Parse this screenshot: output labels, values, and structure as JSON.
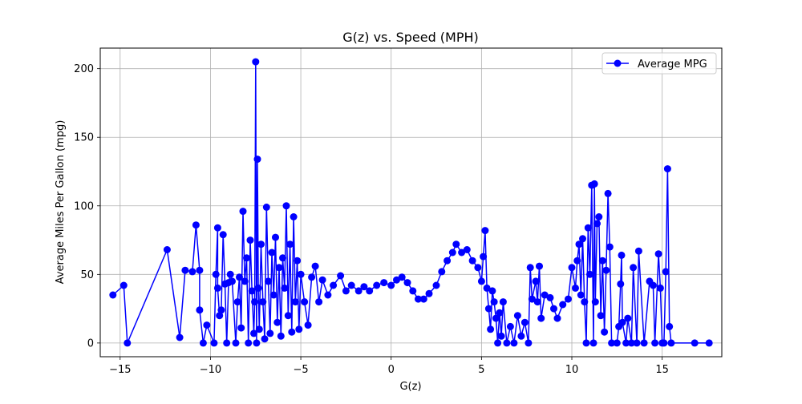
{
  "chart_data": {
    "type": "line",
    "title": "G(z) vs. Speed (MPH)",
    "xlabel": "G(z)",
    "ylabel": "Average Miles Per Gallon (mpg)",
    "xlim": [
      -16.1,
      18.3
    ],
    "ylim": [
      -10,
      215
    ],
    "xticks": [
      -15,
      -10,
      -5,
      0,
      5,
      10,
      15
    ],
    "xtick_labels": [
      "−15",
      "−10",
      "−5",
      "0",
      "5",
      "10",
      "15"
    ],
    "yticks": [
      0,
      50,
      100,
      150,
      200
    ],
    "ytick_labels": [
      "0",
      "50",
      "100",
      "150",
      "200"
    ],
    "grid": true,
    "legend": {
      "placement": "top-right",
      "entries": [
        "Average MPG"
      ]
    },
    "series": [
      {
        "name": "Average MPG",
        "color": "#0000ff",
        "marker": "circle",
        "points": [
          [
            -15.4,
            35
          ],
          [
            -14.8,
            42
          ],
          [
            -14.6,
            0
          ],
          [
            -12.4,
            68
          ],
          [
            -11.7,
            4
          ],
          [
            -11.4,
            53
          ],
          [
            -11.0,
            52
          ],
          [
            -10.8,
            86
          ],
          [
            -10.6,
            53
          ],
          [
            -10.6,
            24
          ],
          [
            -10.4,
            0
          ],
          [
            -10.2,
            13
          ],
          [
            -9.8,
            0
          ],
          [
            -9.7,
            50
          ],
          [
            -9.6,
            84
          ],
          [
            -9.6,
            40
          ],
          [
            -9.5,
            20
          ],
          [
            -9.4,
            24
          ],
          [
            -9.3,
            79
          ],
          [
            -9.2,
            43
          ],
          [
            -9.1,
            0
          ],
          [
            -9.0,
            44
          ],
          [
            -8.9,
            50
          ],
          [
            -8.8,
            45
          ],
          [
            -8.6,
            0
          ],
          [
            -8.5,
            30
          ],
          [
            -8.4,
            48
          ],
          [
            -8.3,
            11
          ],
          [
            -8.2,
            96
          ],
          [
            -8.1,
            45
          ],
          [
            -8.0,
            62
          ],
          [
            -7.9,
            0
          ],
          [
            -7.8,
            75
          ],
          [
            -7.7,
            38
          ],
          [
            -7.6,
            7
          ],
          [
            -7.55,
            30
          ],
          [
            -7.5,
            205
          ],
          [
            -7.45,
            0
          ],
          [
            -7.4,
            134
          ],
          [
            -7.35,
            40
          ],
          [
            -7.3,
            10
          ],
          [
            -7.2,
            72
          ],
          [
            -7.1,
            30
          ],
          [
            -7.0,
            3
          ],
          [
            -6.9,
            99
          ],
          [
            -6.8,
            45
          ],
          [
            -6.7,
            7
          ],
          [
            -6.6,
            66
          ],
          [
            -6.5,
            35
          ],
          [
            -6.4,
            77
          ],
          [
            -6.3,
            15
          ],
          [
            -6.2,
            55
          ],
          [
            -6.1,
            5
          ],
          [
            -6.0,
            62
          ],
          [
            -5.9,
            40
          ],
          [
            -5.8,
            100
          ],
          [
            -5.7,
            20
          ],
          [
            -5.6,
            72
          ],
          [
            -5.5,
            8
          ],
          [
            -5.4,
            92
          ],
          [
            -5.3,
            30
          ],
          [
            -5.2,
            60
          ],
          [
            -5.1,
            10
          ],
          [
            -5.0,
            50
          ],
          [
            -4.8,
            30
          ],
          [
            -4.6,
            13
          ],
          [
            -4.4,
            48
          ],
          [
            -4.2,
            56
          ],
          [
            -4.0,
            30
          ],
          [
            -3.8,
            46
          ],
          [
            -3.5,
            35
          ],
          [
            -3.2,
            42
          ],
          [
            -2.8,
            49
          ],
          [
            -2.5,
            38
          ],
          [
            -2.2,
            42
          ],
          [
            -1.8,
            38
          ],
          [
            -1.5,
            41
          ],
          [
            -1.2,
            38
          ],
          [
            -0.8,
            42
          ],
          [
            -0.4,
            44
          ],
          [
            0.0,
            42
          ],
          [
            0.3,
            46
          ],
          [
            0.6,
            48
          ],
          [
            0.9,
            44
          ],
          [
            1.2,
            38
          ],
          [
            1.5,
            32
          ],
          [
            1.8,
            32
          ],
          [
            2.1,
            36
          ],
          [
            2.5,
            42
          ],
          [
            2.8,
            52
          ],
          [
            3.1,
            60
          ],
          [
            3.4,
            66
          ],
          [
            3.6,
            72
          ],
          [
            3.9,
            66
          ],
          [
            4.2,
            68
          ],
          [
            4.5,
            60
          ],
          [
            4.8,
            55
          ],
          [
            5.0,
            45
          ],
          [
            5.1,
            63
          ],
          [
            5.2,
            82
          ],
          [
            5.3,
            40
          ],
          [
            5.4,
            25
          ],
          [
            5.5,
            10
          ],
          [
            5.6,
            38
          ],
          [
            5.7,
            30
          ],
          [
            5.8,
            18
          ],
          [
            5.9,
            0
          ],
          [
            6.0,
            22
          ],
          [
            6.1,
            5
          ],
          [
            6.2,
            30
          ],
          [
            6.4,
            0
          ],
          [
            6.6,
            12
          ],
          [
            6.8,
            0
          ],
          [
            7.0,
            20
          ],
          [
            7.2,
            5
          ],
          [
            7.4,
            15
          ],
          [
            7.6,
            0
          ],
          [
            7.7,
            55
          ],
          [
            7.8,
            32
          ],
          [
            8.0,
            45
          ],
          [
            8.1,
            30
          ],
          [
            8.2,
            56
          ],
          [
            8.3,
            18
          ],
          [
            8.5,
            35
          ],
          [
            8.8,
            33
          ],
          [
            9.0,
            25
          ],
          [
            9.2,
            18
          ],
          [
            9.5,
            28
          ],
          [
            9.8,
            32
          ],
          [
            10.0,
            55
          ],
          [
            10.2,
            40
          ],
          [
            10.3,
            60
          ],
          [
            10.4,
            72
          ],
          [
            10.5,
            35
          ],
          [
            10.6,
            76
          ],
          [
            10.7,
            30
          ],
          [
            10.8,
            0
          ],
          [
            10.9,
            84
          ],
          [
            11.0,
            50
          ],
          [
            11.1,
            115
          ],
          [
            11.2,
            0
          ],
          [
            11.25,
            116
          ],
          [
            11.3,
            30
          ],
          [
            11.4,
            87
          ],
          [
            11.5,
            92
          ],
          [
            11.6,
            20
          ],
          [
            11.7,
            60
          ],
          [
            11.8,
            8
          ],
          [
            11.9,
            53
          ],
          [
            12.0,
            109
          ],
          [
            12.1,
            70
          ],
          [
            12.2,
            0
          ],
          [
            12.5,
            0
          ],
          [
            12.6,
            12
          ],
          [
            12.7,
            43
          ],
          [
            12.75,
            64
          ],
          [
            12.8,
            15
          ],
          [
            13.0,
            0
          ],
          [
            13.1,
            18
          ],
          [
            13.3,
            0
          ],
          [
            13.4,
            55
          ],
          [
            13.6,
            0
          ],
          [
            13.7,
            67
          ],
          [
            14.0,
            0
          ],
          [
            14.3,
            45
          ],
          [
            14.5,
            42
          ],
          [
            14.6,
            0
          ],
          [
            14.8,
            65
          ],
          [
            14.9,
            40
          ],
          [
            15.0,
            0
          ],
          [
            15.1,
            0
          ],
          [
            15.2,
            52
          ],
          [
            15.3,
            127
          ],
          [
            15.4,
            12
          ],
          [
            15.5,
            0
          ],
          [
            16.8,
            0
          ],
          [
            17.6,
            0
          ]
        ]
      }
    ]
  }
}
